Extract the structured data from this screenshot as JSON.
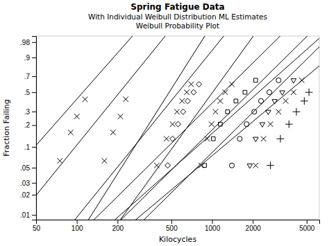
{
  "chart_data": {
    "type": "scatter",
    "title": "Spring Fatigue Data",
    "subtitle": [
      "With Individual Weibull Distribution ML Estimates",
      "Weibull Probability Plot"
    ],
    "x_label": "Kilocycles",
    "y_label": "Fraction Failing",
    "log": "x",
    "grid": false,
    "color": "#000000",
    "xlim": [
      50,
      6200
    ],
    "xticks": [
      50,
      100,
      200,
      500,
      1000,
      2000,
      5000
    ],
    "ylim": [
      0.0085,
      0.992
    ],
    "yticks": [
      {
        "value": 0.01,
        "label": ".01"
      },
      {
        "value": 0.02,
        "label": ".02"
      },
      {
        "value": 0.03,
        "label": ".03"
      },
      {
        "value": 0.05,
        "label": ".05"
      },
      {
        "value": 0.1,
        "label": ".1"
      },
      {
        "value": 0.2,
        "label": ".2"
      },
      {
        "value": 0.3,
        "label": ".3"
      },
      {
        "value": 0.5,
        "label": ".5"
      },
      {
        "value": 0.7,
        "label": ".7"
      },
      {
        "value": 0.9,
        "label": ".9"
      },
      {
        "value": 0.98,
        "label": ".98"
      }
    ],
    "series": [
      {
        "marker": "x",
        "eta": 130,
        "beta": 2.3,
        "x": [
          75,
          90,
          100,
          115
        ],
        "values": [
          0.063,
          0.159,
          0.26,
          0.42
        ]
      },
      {
        "marker": "x",
        "eta": 240,
        "beta": 2.5,
        "x": [
          160,
          185,
          210,
          230
        ],
        "values": [
          0.063,
          0.159,
          0.26,
          0.42
        ]
      },
      {
        "marker": "x",
        "eta": 540,
        "beta": 3.2,
        "x": [
          390,
          460,
          510,
          550,
          600,
          650,
          700
        ],
        "values": [
          0.054,
          0.13,
          0.206,
          0.298,
          0.401,
          0.5,
          0.599
        ]
      },
      {
        "marker": "diamond",
        "eta": 650,
        "beta": 2.5,
        "x": [
          470,
          510,
          560,
          610,
          660,
          730,
          800
        ],
        "values": [
          0.054,
          0.13,
          0.206,
          0.298,
          0.401,
          0.5,
          0.599
        ]
      },
      {
        "marker": "x",
        "eta": 1150,
        "beta": 2.8,
        "x": [
          830,
          920,
          990,
          1060,
          1150,
          1250,
          1400
        ],
        "values": [
          0.054,
          0.13,
          0.206,
          0.298,
          0.401,
          0.5,
          0.599
        ]
      },
      {
        "marker": "square",
        "eta": 1450,
        "beta": 2.0,
        "x": [
          880,
          1020,
          1150,
          1300,
          1500,
          1750,
          2100
        ],
        "values": [
          0.054,
          0.13,
          0.206,
          0.298,
          0.401,
          0.5,
          0.65
        ]
      },
      {
        "marker": "circle",
        "eta": 2300,
        "beta": 2.0,
        "x": [
          1400,
          1600,
          1800,
          2050,
          2300,
          2650,
          3100
        ],
        "values": [
          0.054,
          0.13,
          0.206,
          0.298,
          0.401,
          0.5,
          0.65
        ]
      },
      {
        "marker": "triangle-down",
        "eta": 2700,
        "beta": 1.8,
        "x": [
          1900,
          2100,
          2350,
          2600,
          2900,
          3300,
          4000
        ],
        "values": [
          0.054,
          0.13,
          0.206,
          0.298,
          0.401,
          0.5,
          0.65
        ]
      },
      {
        "marker": "x",
        "eta": 3400,
        "beta": 2.0,
        "x": [
          2100,
          2400,
          2700,
          3100,
          3500,
          4000,
          4600
        ],
        "values": [
          0.054,
          0.13,
          0.206,
          0.298,
          0.401,
          0.5,
          0.65
        ]
      },
      {
        "marker": "plus",
        "eta": 4500,
        "beta": 1.7,
        "x": [
          2700,
          3200,
          3700,
          4200,
          4800,
          5200
        ],
        "values": [
          0.054,
          0.13,
          0.206,
          0.298,
          0.401,
          0.5
        ]
      }
    ]
  }
}
